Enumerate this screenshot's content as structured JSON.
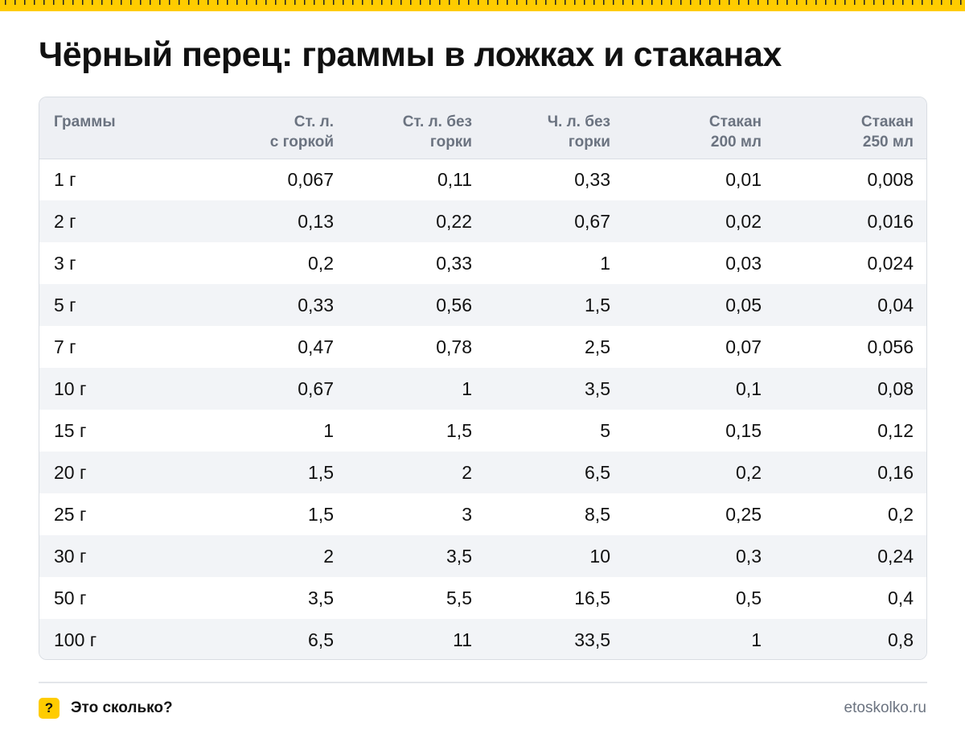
{
  "title": "Чёрный перец: граммы в ложках и стаканах",
  "table": {
    "headers": [
      "Граммы",
      "Ст. л.\nс горкой",
      "Ст. л. без\nгорки",
      "Ч. л. без\nгорки",
      "Стакан\n200 мл",
      "Стакан\n250 мл"
    ],
    "rows": [
      [
        "1 г",
        "0,067",
        "0,11",
        "0,33",
        "0,01",
        "0,008"
      ],
      [
        "2 г",
        "0,13",
        "0,22",
        "0,67",
        "0,02",
        "0,016"
      ],
      [
        "3 г",
        "0,2",
        "0,33",
        "1",
        "0,03",
        "0,024"
      ],
      [
        "5 г",
        "0,33",
        "0,56",
        "1,5",
        "0,05",
        "0,04"
      ],
      [
        "7 г",
        "0,47",
        "0,78",
        "2,5",
        "0,07",
        "0,056"
      ],
      [
        "10 г",
        "0,67",
        "1",
        "3,5",
        "0,1",
        "0,08"
      ],
      [
        "15 г",
        "1",
        "1,5",
        "5",
        "0,15",
        "0,12"
      ],
      [
        "20 г",
        "1,5",
        "2",
        "6,5",
        "0,2",
        "0,16"
      ],
      [
        "25 г",
        "1,5",
        "3",
        "8,5",
        "0,25",
        "0,2"
      ],
      [
        "30 г",
        "2",
        "3,5",
        "10",
        "0,3",
        "0,24"
      ],
      [
        "50 г",
        "3,5",
        "5,5",
        "16,5",
        "0,5",
        "0,4"
      ],
      [
        "100 г",
        "6,5",
        "11",
        "33,5",
        "1",
        "0,8"
      ]
    ]
  },
  "footer": {
    "icon_glyph": "?",
    "brand": "Это сколько?",
    "site": "etoskolko.ru"
  },
  "colors": {
    "accent": "#ffcc00",
    "header_bg": "#eef0f4",
    "stripe_bg": "#f2f4f7",
    "muted_text": "#6b7380"
  },
  "icons": {
    "ruler": "ruler-decoration",
    "brand": "question-mark-icon"
  }
}
